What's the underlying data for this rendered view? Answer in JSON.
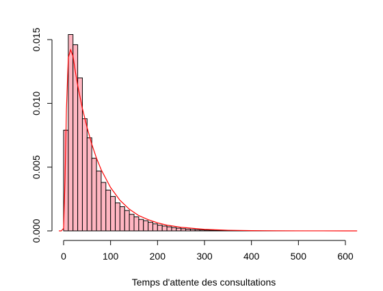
{
  "chart_data": {
    "type": "bar",
    "subtype": "histogram-with-density",
    "title": "",
    "xlabel": "Temps d'attente des consultations",
    "ylabel": "",
    "xlim": [
      0,
      600
    ],
    "ylim": [
      0,
      0.015
    ],
    "x_ticks": [
      "0",
      "100",
      "200",
      "300",
      "400",
      "500",
      "600"
    ],
    "y_ticks": [
      "0.000",
      "0.005",
      "0.010",
      "0.015"
    ],
    "bin_width": 10,
    "bins": [
      0,
      10,
      20,
      30,
      40,
      50,
      60,
      70,
      80,
      90,
      100,
      110,
      120,
      130,
      140,
      150,
      160,
      170,
      180,
      190,
      200,
      210,
      220,
      230,
      240,
      250,
      260,
      270,
      280,
      290,
      300,
      310,
      320,
      330,
      340,
      350,
      360,
      370,
      380,
      390,
      400,
      410,
      420,
      430,
      440,
      450,
      460,
      470,
      480,
      490,
      500,
      510,
      520,
      530,
      540,
      550,
      560,
      570,
      580,
      590
    ],
    "densities": [
      0.0079,
      0.0154,
      0.0146,
      0.012,
      0.0088,
      0.0073,
      0.0057,
      0.0047,
      0.0038,
      0.0032,
      0.0027,
      0.0022,
      0.0019,
      0.0016,
      0.0013,
      0.0011,
      0.0009,
      0.0008,
      0.00068,
      0.00055,
      0.00045,
      0.00038,
      0.00032,
      0.00026,
      0.00021,
      0.00017,
      0.00014,
      0.00011,
      9e-05,
      7e-05,
      6e-05,
      5e-05,
      4e-05,
      3e-05,
      2.5e-05,
      2e-05,
      1.6e-05,
      1.3e-05,
      1e-05,
      8e-06,
      6e-06,
      5e-06,
      4e-06,
      3e-06,
      2.5e-06,
      2e-06,
      1.5e-06,
      1.2e-06,
      1e-06,
      8e-07,
      6e-07,
      5e-07,
      4e-07,
      3e-07,
      2.5e-07,
      2e-07,
      1.5e-07,
      1.2e-07,
      1e-07,
      8e-08
    ],
    "density_curve": {
      "color": "#ff0000",
      "x": [
        -10,
        -5,
        0,
        3,
        6,
        10,
        15,
        20,
        25,
        30,
        40,
        50,
        60,
        70,
        80,
        90,
        100,
        120,
        140,
        160,
        180,
        200,
        220,
        250,
        300,
        350,
        400,
        450,
        500,
        550,
        600,
        625
      ],
      "y": [
        0,
        0,
        0.0002,
        0.004,
        0.0095,
        0.0136,
        0.0142,
        0.0137,
        0.0125,
        0.0114,
        0.0096,
        0.0081,
        0.0068,
        0.0057,
        0.0048,
        0.0041,
        0.0034,
        0.0024,
        0.0017,
        0.0012,
        0.00088,
        0.00063,
        0.00045,
        0.00028,
        0.00012,
        5e-05,
        2e-05,
        1e-05,
        4e-06,
        2e-06,
        1e-06,
        5e-07
      ]
    },
    "bar_color": "#ffb6c1",
    "grid": false,
    "legend": "none"
  }
}
